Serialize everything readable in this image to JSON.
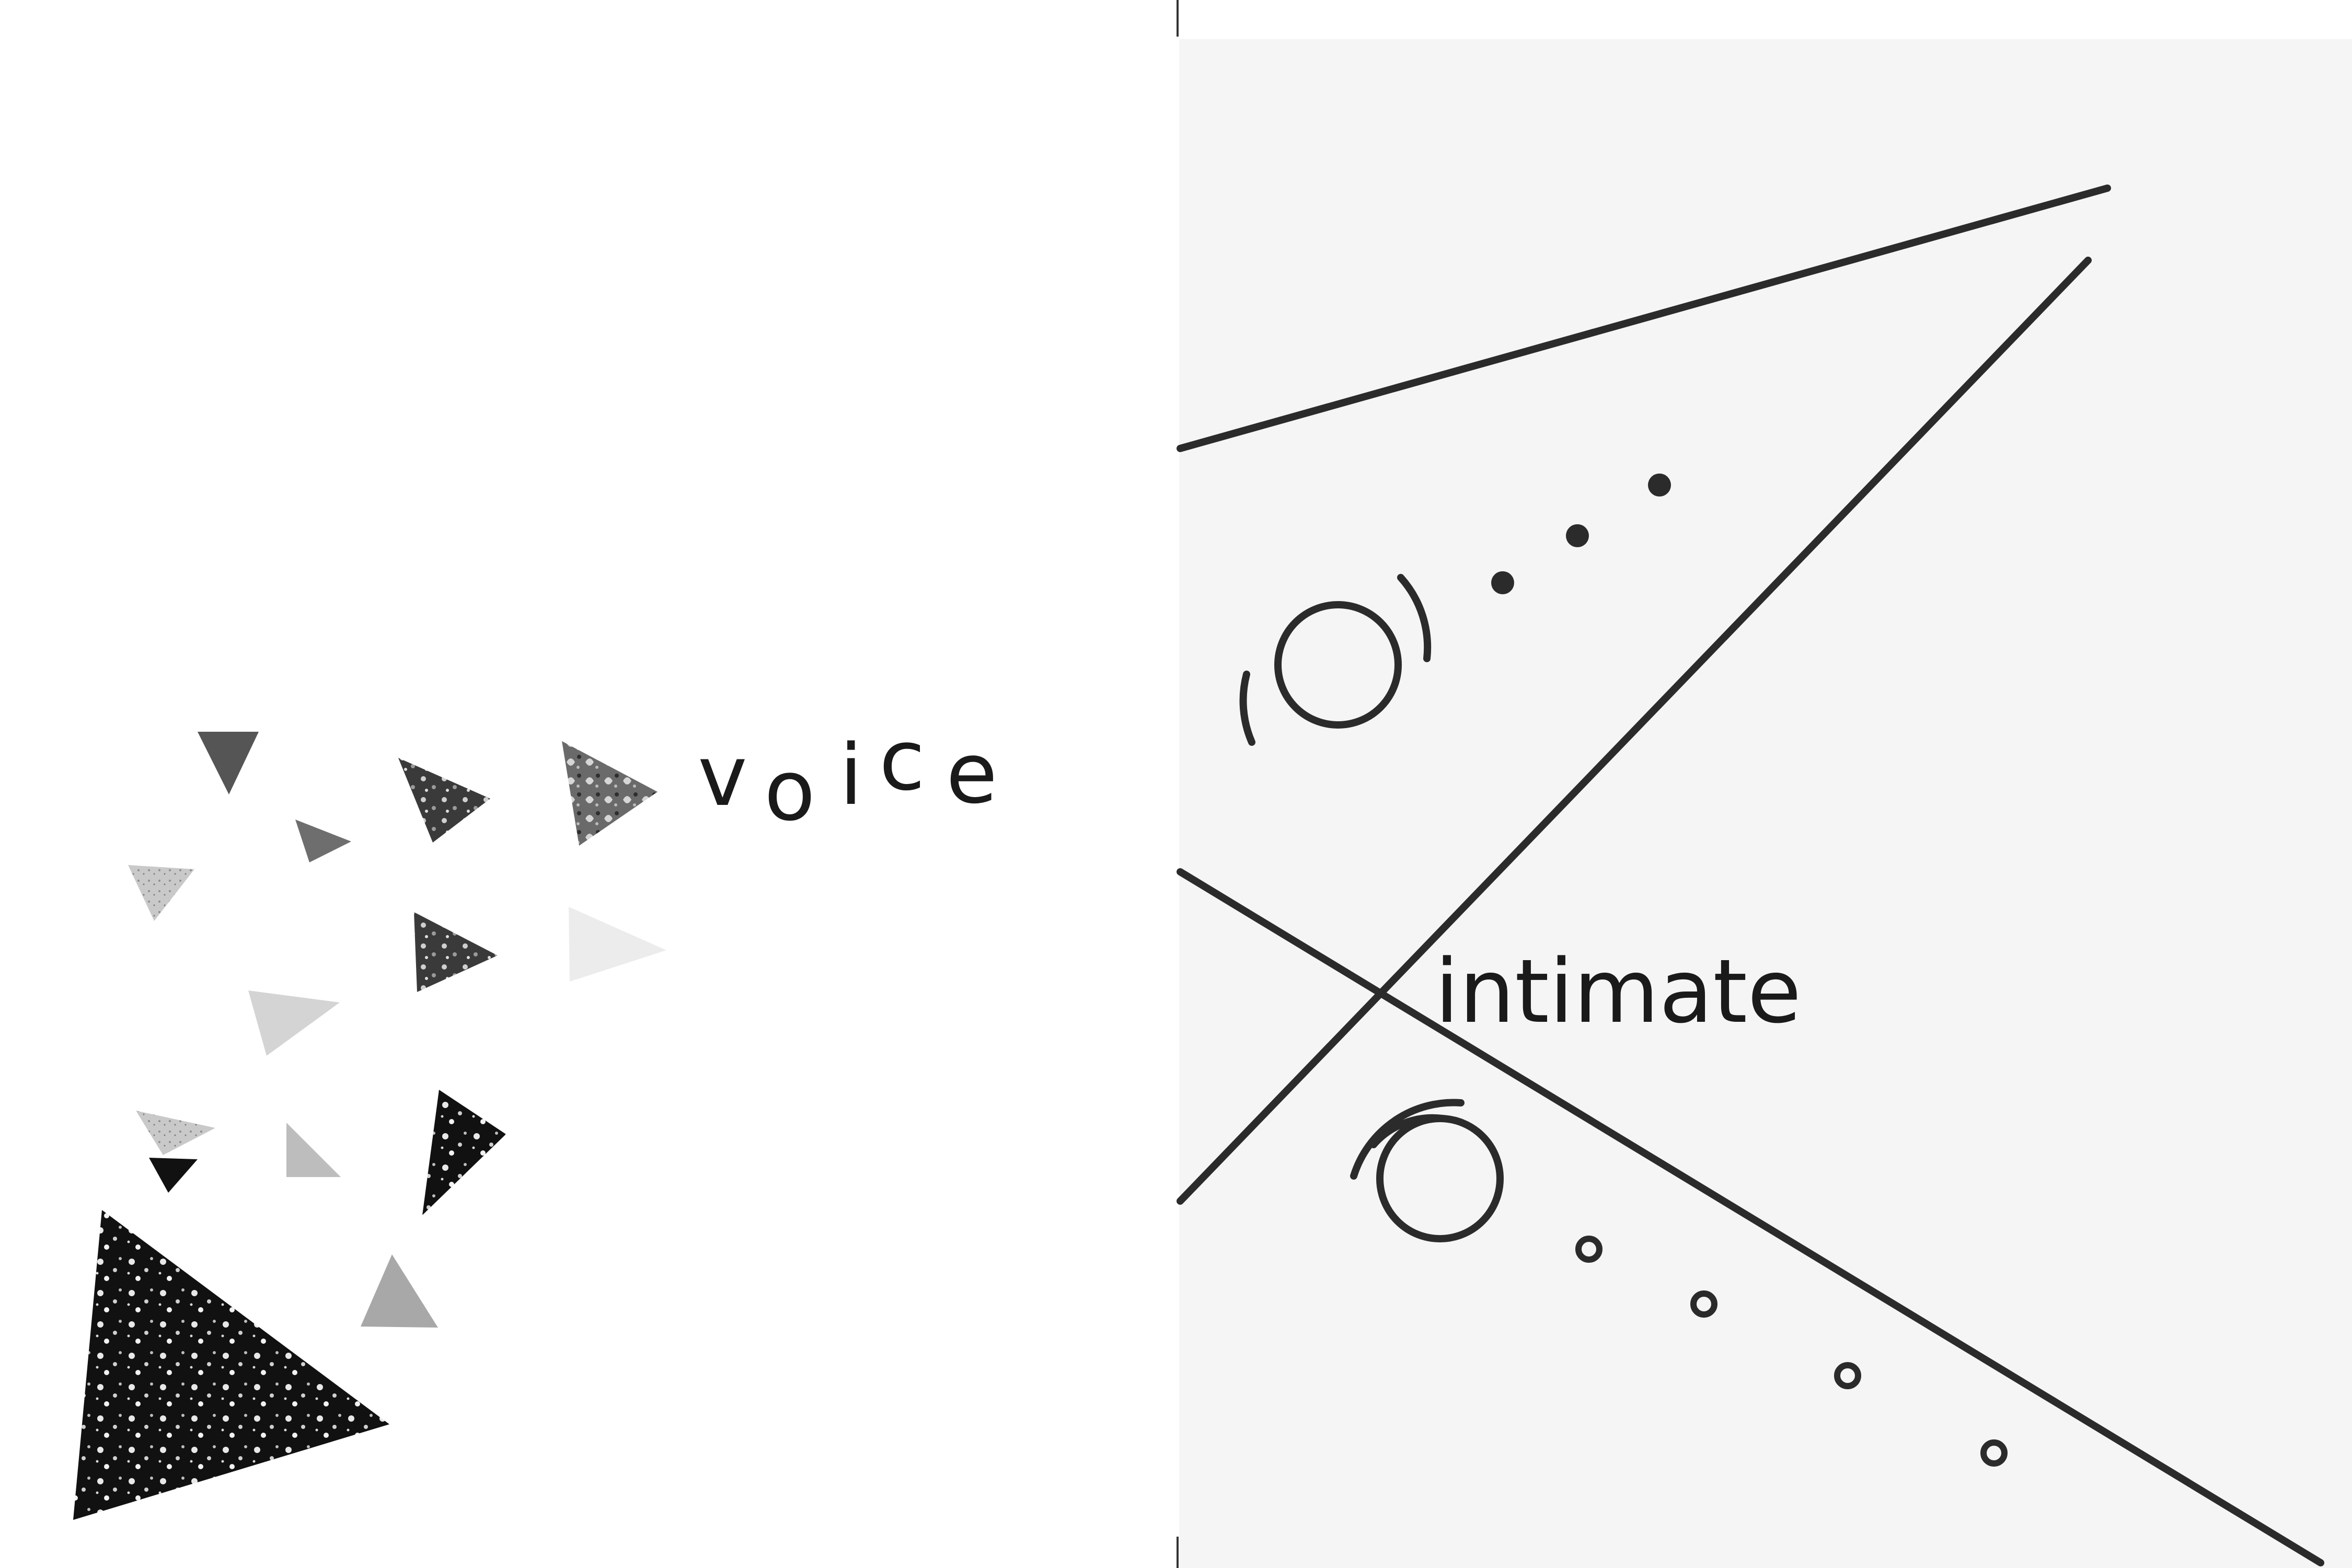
{
  "left_page": {
    "word": "voice",
    "letters": [
      "v",
      "o",
      "i",
      "c",
      "e"
    ]
  },
  "right_page": {
    "word": "intimate"
  },
  "colors": {
    "page_bg": "#ffffff",
    "right_page_bg": "#f5f5f5",
    "ink": "#1a1a1a",
    "line": "#2b2b2b"
  }
}
